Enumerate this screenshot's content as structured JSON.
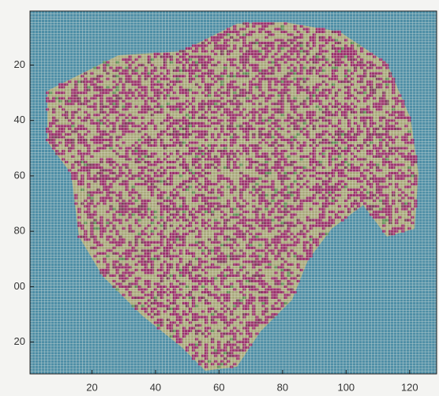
{
  "chart_data": {
    "type": "image",
    "xlim": [
      0.5,
      128.5
    ],
    "ylim": [
      0.5,
      131.5
    ],
    "y_direction": "reverse",
    "xticks": [
      20,
      40,
      60,
      80,
      100,
      120
    ],
    "yticks": [
      20,
      40,
      60,
      80,
      {
        "value": 100,
        "label": "00"
      },
      {
        "value": 120,
        "label": "20"
      }
    ]
  }
}
